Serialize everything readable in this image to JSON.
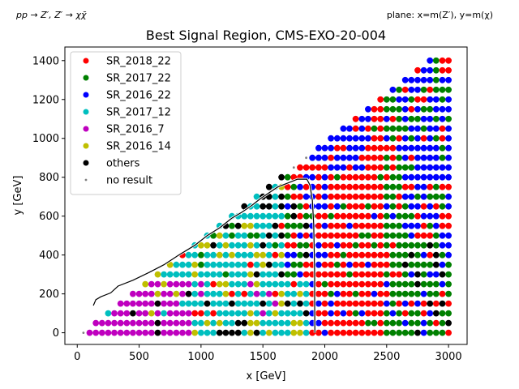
{
  "header": {
    "process_label": "pp → Z′, Z′ → χχ̄",
    "plane_label": "plane: x=m(Z′), y=m(χ)"
  },
  "chart_data": {
    "type": "scatter",
    "title": "Best Signal Region, CMS-EXO-20-004",
    "xlabel": "x [GeV]",
    "ylabel": "y [GeV]",
    "xlim": [
      -100,
      3150
    ],
    "ylim": [
      -60,
      1470
    ],
    "xticks": [
      0,
      500,
      1000,
      1500,
      2000,
      2500,
      3000
    ],
    "yticks": [
      0,
      200,
      400,
      600,
      800,
      1000,
      1200,
      1400
    ],
    "grid": false,
    "legend_position": "upper left",
    "series": [
      {
        "name": "SR_2018_22",
        "color": "#ff0000"
      },
      {
        "name": "SR_2017_22",
        "color": "#008000"
      },
      {
        "name": "SR_2016_22",
        "color": "#0000ff"
      },
      {
        "name": "SR_2017_12",
        "color": "#00bfbf"
      },
      {
        "name": "SR_2016_7",
        "color": "#bf00bf"
      },
      {
        "name": "SR_2016_14",
        "color": "#bfbf00"
      },
      {
        "name": "others",
        "color": "#000000"
      },
      {
        "name": "no result",
        "color": "#808080"
      }
    ],
    "boundary_curve": [
      [
        130,
        140
      ],
      [
        150,
        170
      ],
      [
        190,
        185
      ],
      [
        270,
        205
      ],
      [
        330,
        240
      ],
      [
        450,
        270
      ],
      [
        580,
        310
      ],
      [
        700,
        350
      ],
      [
        820,
        400
      ],
      [
        950,
        450
      ],
      [
        1050,
        500
      ],
      [
        1150,
        540
      ],
      [
        1250,
        590
      ],
      [
        1330,
        620
      ],
      [
        1400,
        650
      ],
      [
        1480,
        690
      ],
      [
        1550,
        720
      ],
      [
        1620,
        750
      ],
      [
        1700,
        770
      ],
      [
        1780,
        790
      ],
      [
        1855,
        790
      ],
      [
        1880,
        760
      ],
      [
        1900,
        680
      ],
      [
        1910,
        560
      ],
      [
        1915,
        420
      ],
      [
        1918,
        300
      ],
      [
        1918,
        150
      ],
      [
        1920,
        0
      ]
    ]
  }
}
